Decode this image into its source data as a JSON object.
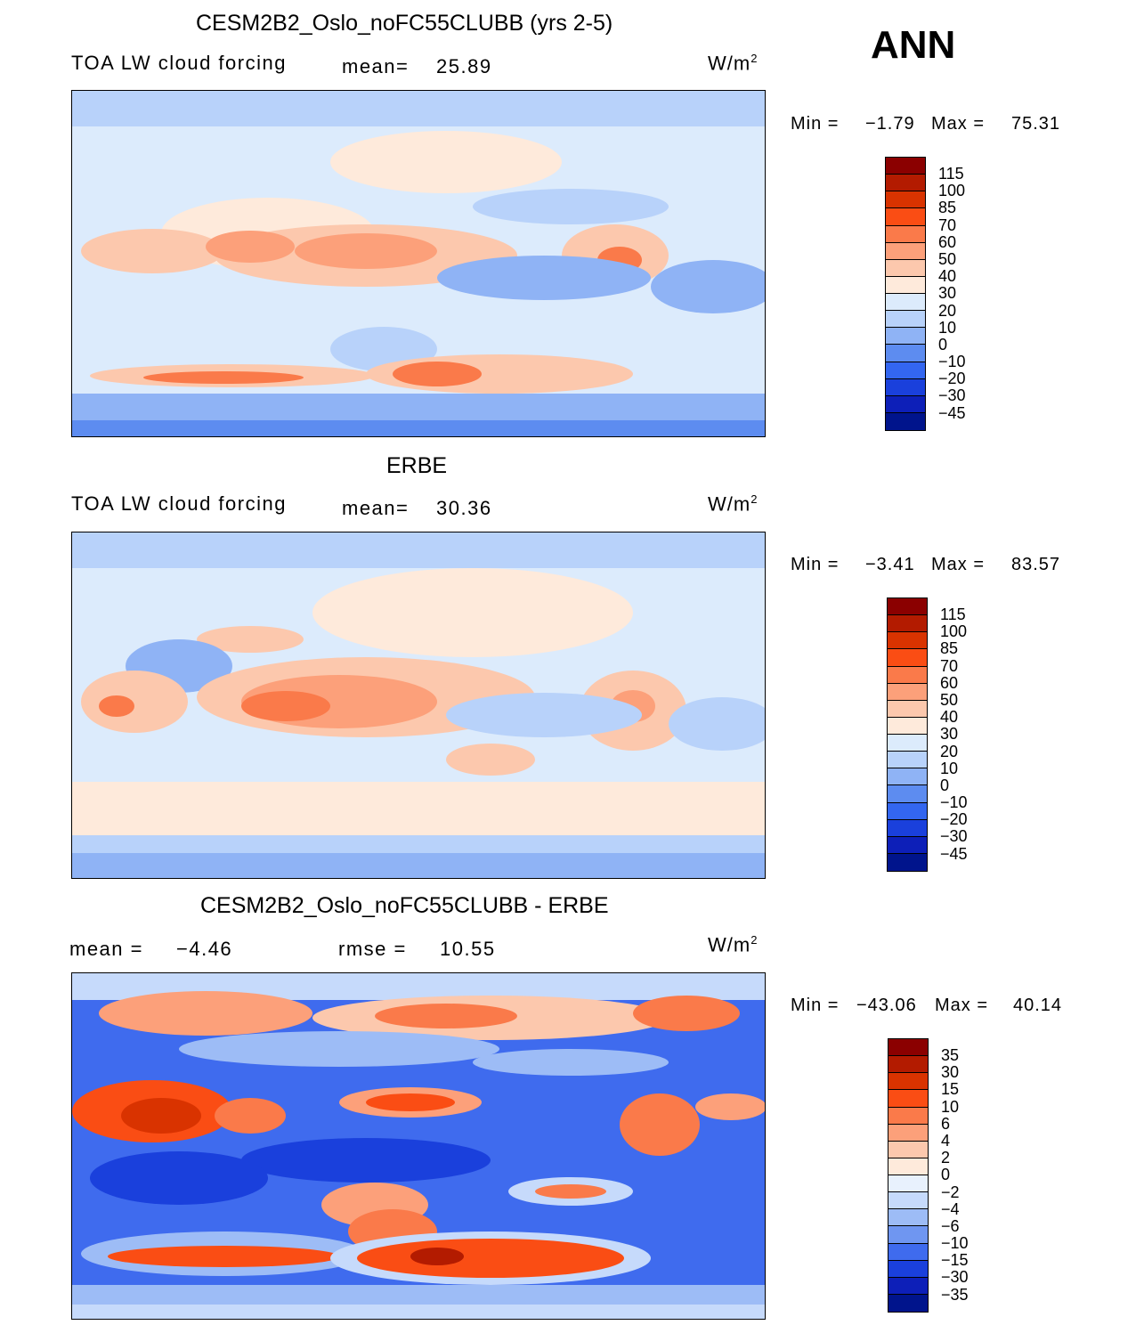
{
  "season": "ANN",
  "panels": [
    {
      "title": "CESM2B2_Oslo_noFC55CLUBB (yrs 2-5)",
      "left_label": "TOA LW cloud forcing",
      "stat1_label": "mean=",
      "stat1_value": "25.89",
      "stat2_label": "",
      "stat2_value": "",
      "units": "W/m",
      "units_sup": "2",
      "min_label": "Min =",
      "min_value": "−1.79",
      "max_label": "Max =",
      "max_value": "75.31",
      "colorbar": {
        "levels": [
          "115",
          "100",
          "85",
          "70",
          "60",
          "50",
          "40",
          "30",
          "20",
          "10",
          "0",
          "−10",
          "−20",
          "−30",
          "−45"
        ],
        "colors": [
          "#8b0000",
          "#b31b00",
          "#d93300",
          "#fa4d14",
          "#fa7a4a",
          "#fca07a",
          "#fcc8ad",
          "#feeadb",
          "#dcebfc",
          "#b8d2fa",
          "#8fb3f5",
          "#5d8cf0",
          "#3366f0",
          "#1a40dc",
          "#0d1fb8",
          "#00148c"
        ]
      }
    },
    {
      "title": "ERBE",
      "left_label": "TOA LW cloud forcing",
      "stat1_label": "mean=",
      "stat1_value": "30.36",
      "stat2_label": "",
      "stat2_value": "",
      "units": "W/m",
      "units_sup": "2",
      "min_label": "Min =",
      "min_value": "−3.41",
      "max_label": "Max =",
      "max_value": "83.57",
      "colorbar": {
        "levels": [
          "115",
          "100",
          "85",
          "70",
          "60",
          "50",
          "40",
          "30",
          "20",
          "10",
          "0",
          "−10",
          "−20",
          "−30",
          "−45"
        ],
        "colors": [
          "#8b0000",
          "#b31b00",
          "#d93300",
          "#fa4d14",
          "#fa7a4a",
          "#fca07a",
          "#fcc8ad",
          "#feeadb",
          "#dcebfc",
          "#b8d2fa",
          "#8fb3f5",
          "#5d8cf0",
          "#3366f0",
          "#1a40dc",
          "#0d1fb8",
          "#00148c"
        ]
      }
    },
    {
      "title": "CESM2B2_Oslo_noFC55CLUBB - ERBE",
      "left_label": "",
      "stat1_label": "mean =",
      "stat1_value": "−4.46",
      "stat2_label": "rmse =",
      "stat2_value": "10.55",
      "units": "W/m",
      "units_sup": "2",
      "min_label": "Min =",
      "min_value": "−43.06",
      "max_label": "Max =",
      "max_value": "40.14",
      "colorbar": {
        "levels": [
          "35",
          "30",
          "15",
          "10",
          "6",
          "4",
          "2",
          "0",
          "−2",
          "−4",
          "−6",
          "−10",
          "−15",
          "−30",
          "−35"
        ],
        "colors": [
          "#8b0000",
          "#b31b00",
          "#d93300",
          "#fa4d14",
          "#fa7a4a",
          "#fca07a",
          "#fcc8ad",
          "#feeadb",
          "#e8f1fd",
          "#c6dafb",
          "#9dbcf6",
          "#6f96f1",
          "#3f6bee",
          "#1a40dc",
          "#0d1fb8",
          "#00148c"
        ]
      }
    }
  ]
}
